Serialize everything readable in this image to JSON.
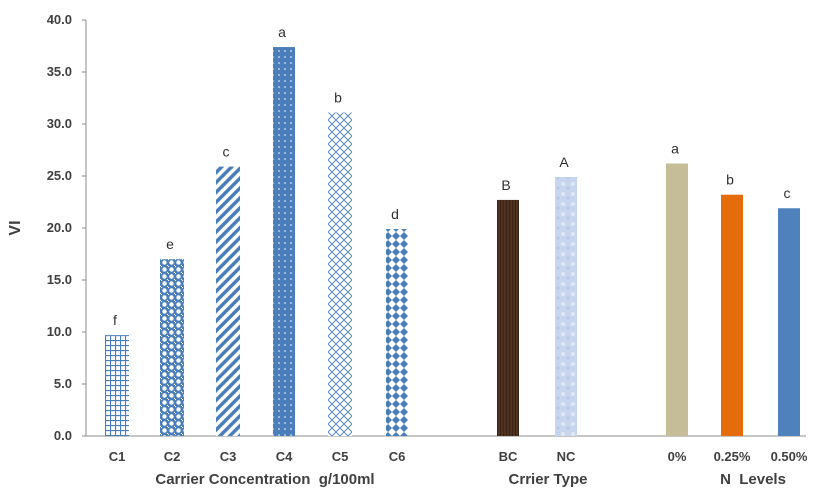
{
  "chart_data": {
    "type": "bar",
    "title": "",
    "ylabel": "VI",
    "ylim": [
      0,
      40
    ],
    "yticks": [
      "0.0",
      "5.0",
      "10.0",
      "15.0",
      "20.0",
      "25.0",
      "30.0",
      "35.0",
      "40.0"
    ],
    "grid": false,
    "groups": [
      {
        "name": "Carrier Concentration  g/100ml",
        "categories": [
          "C1",
          "C2",
          "C3",
          "C4",
          "C5",
          "C6"
        ],
        "values": [
          9.7,
          17.0,
          25.9,
          37.4,
          31.1,
          19.9
        ],
        "labels": [
          "f",
          "e",
          "c",
          "a",
          "b",
          "d"
        ]
      },
      {
        "name": "Crrier Type",
        "categories": [
          "BC",
          "NC"
        ],
        "values": [
          22.7,
          24.9
        ],
        "labels": [
          "B",
          "A"
        ]
      },
      {
        "name": "N  Levels",
        "categories": [
          "0%",
          "0.25%",
          "0.50%"
        ],
        "values": [
          26.2,
          23.2,
          21.9
        ],
        "labels": [
          "a",
          "b",
          "c"
        ]
      }
    ],
    "colors": {
      "blue": "#4a7ebb",
      "dark_brown": "#3b2416",
      "light_blue": "#c7d6ee",
      "tan": "#c4bd97",
      "orange": "#e46c0a",
      "steel_blue": "#4f81bd"
    }
  }
}
